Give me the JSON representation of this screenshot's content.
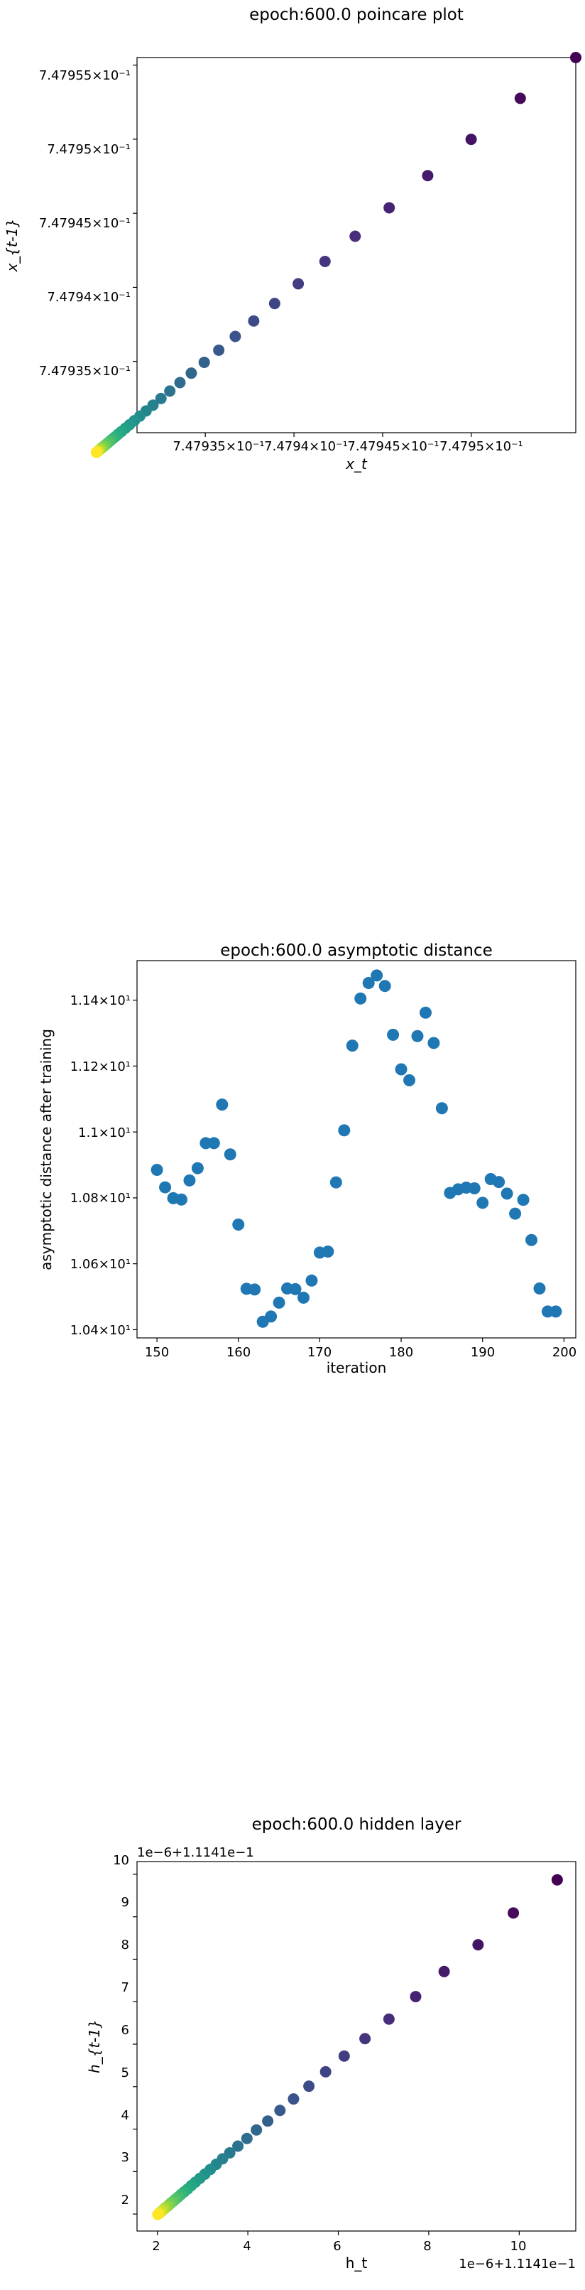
{
  "chart_data": [
    {
      "type": "scatter",
      "title": "epoch:600.0 poincare plot",
      "xlabel": "x_t",
      "ylabel": "x_{t-1}",
      "xlim": [
        0.74793115,
        0.74795589
      ],
      "ylim": [
        0.74793019,
        0.74795551
      ],
      "xticks": [
        0.747935,
        0.74794,
        0.747945,
        0.74795
      ],
      "xtick_labels": [
        "7.47935×10⁻¹",
        "7.4794×10⁻¹",
        "7.47945×10⁻¹",
        "7.4795×10⁻¹"
      ],
      "yticks": [
        0.747935,
        0.74794,
        0.747945,
        0.74795,
        0.747955
      ],
      "ytick_labels": [
        "7.47935×10⁻¹",
        "7.4794×10⁻¹",
        "7.47945×10⁻¹",
        "7.4795×10⁻¹",
        "7.47955×10⁻¹"
      ],
      "colormap": "viridis",
      "series": [
        {
          "x": [
            0.74795589,
            0.74795276,
            0.74794999,
            0.74794754,
            0.74794537,
            0.74794345,
            0.74794175,
            0.74794024,
            0.74793891,
            0.74793773,
            0.74793669,
            0.74793576,
            0.74793494,
            0.74793421,
            0.74793357,
            0.747933,
            0.7479325,
            0.74793205,
            0.74793166,
            0.74793131,
            0.747931,
            0.74793073,
            0.74793049,
            0.74793027,
            0.74793008,
            0.74792991,
            0.74792976,
            0.74792963,
            0.74792951,
            0.74792941,
            0.74792932,
            0.74792924,
            0.74792917,
            0.74792911,
            0.74792905,
            0.747929,
            0.74792896,
            0.74792892,
            0.74792889,
            0.74792886
          ],
          "y": [
            0.74795551,
            0.74795276,
            0.74794999,
            0.74794754,
            0.74794537,
            0.74794345,
            0.74794175,
            0.74794024,
            0.74793891,
            0.74793773,
            0.74793669,
            0.74793576,
            0.74793494,
            0.74793421,
            0.74793357,
            0.747933,
            0.7479325,
            0.74793205,
            0.74793166,
            0.74793131,
            0.747931,
            0.74793073,
            0.74793049,
            0.74793027,
            0.74793008,
            0.74792991,
            0.74792976,
            0.74792963,
            0.74792951,
            0.74792941,
            0.74792932,
            0.74792924,
            0.74792917,
            0.74792911,
            0.74792905,
            0.747929,
            0.74792896,
            0.74792892,
            0.74792889,
            0.74792886
          ]
        }
      ]
    },
    {
      "type": "scatter",
      "title": "epoch:600.0 asymptotic distance",
      "xlabel": "iteration",
      "ylabel": "asymptotic distance after training",
      "xlim": [
        147.55,
        201.45
      ],
      "ylim": [
        10.375,
        11.52
      ],
      "xticks": [
        150,
        160,
        170,
        180,
        190,
        200
      ],
      "xtick_labels": [
        "150",
        "160",
        "170",
        "180",
        "190",
        "200"
      ],
      "yticks": [
        10.4,
        10.6,
        10.8,
        11.0,
        11.2,
        11.4
      ],
      "ytick_labels": [
        "1.04×10¹",
        "1.06×10¹",
        "1.08×10¹",
        "1.1×10¹",
        "1.12×10¹",
        "1.14×10¹"
      ],
      "color": "#1f77b4",
      "series": [
        {
          "x": [
            150,
            151,
            152,
            153,
            154,
            155,
            156,
            157,
            158,
            159,
            160,
            161,
            162,
            163,
            164,
            165,
            166,
            167,
            168,
            169,
            170,
            171,
            172,
            173,
            174,
            175,
            176,
            177,
            178,
            179,
            180,
            181,
            182,
            183,
            184,
            185,
            186,
            187,
            188,
            189,
            190,
            191,
            192,
            193,
            194,
            195,
            196,
            197,
            198,
            199
          ],
          "y": [
            10.885,
            10.832,
            10.799,
            10.795,
            10.853,
            10.89,
            10.966,
            10.966,
            11.083,
            10.932,
            10.719,
            10.524,
            10.522,
            10.424,
            10.44,
            10.482,
            10.525,
            10.523,
            10.497,
            10.549,
            10.634,
            10.637,
            10.847,
            11.005,
            11.262,
            11.405,
            11.452,
            11.475,
            11.443,
            11.295,
            11.19,
            11.157,
            11.291,
            11.362,
            11.27,
            11.072,
            10.815,
            10.826,
            10.831,
            10.829,
            10.785,
            10.857,
            10.848,
            10.813,
            10.752,
            10.794,
            10.672,
            10.525,
            10.455,
            10.455
          ]
        }
      ]
    },
    {
      "type": "scatter",
      "title": "epoch:600.0 hidden layer",
      "xlabel": "h_t",
      "ylabel": "h_{t-1}",
      "x_offset_label": "1e−6+1.1141e−1",
      "y_offset_label": "1e−6+1.1141e−1",
      "xlim": [
        1.55,
        11.25
      ],
      "ylim": [
        1.6,
        10.3
      ],
      "xticks": [
        2,
        4,
        6,
        8,
        10
      ],
      "xtick_labels": [
        "2",
        "4",
        "6",
        "8",
        "10"
      ],
      "yticks": [
        2,
        3,
        4,
        5,
        6,
        7,
        8,
        9,
        10
      ],
      "ytick_labels": [
        "2",
        "3",
        "4",
        "5",
        "6",
        "7",
        "8",
        "9",
        "10"
      ],
      "colormap": "viridis",
      "series": [
        {
          "x": [
            10.84,
            9.87,
            9.09,
            8.34,
            7.71,
            7.12,
            6.59,
            6.13,
            5.72,
            5.35,
            5.01,
            4.71,
            4.44,
            4.19,
            3.98,
            3.78,
            3.6,
            3.44,
            3.3,
            3.17,
            3.05,
            2.94,
            2.84,
            2.75,
            2.67,
            2.59,
            2.52,
            2.46,
            2.4,
            2.35,
            2.3,
            2.26,
            2.22,
            2.18,
            2.15,
            2.12,
            2.09,
            2.06,
            2.04,
            2.01
          ],
          "y": [
            9.87,
            9.09,
            8.34,
            7.71,
            7.12,
            6.59,
            6.13,
            5.72,
            5.35,
            5.01,
            4.71,
            4.44,
            4.19,
            3.98,
            3.78,
            3.6,
            3.44,
            3.3,
            3.17,
            3.05,
            2.94,
            2.84,
            2.75,
            2.67,
            2.59,
            2.52,
            2.46,
            2.4,
            2.35,
            2.3,
            2.26,
            2.22,
            2.18,
            2.15,
            2.12,
            2.09,
            2.06,
            2.04,
            2.01,
            1.99
          ]
        }
      ]
    }
  ]
}
